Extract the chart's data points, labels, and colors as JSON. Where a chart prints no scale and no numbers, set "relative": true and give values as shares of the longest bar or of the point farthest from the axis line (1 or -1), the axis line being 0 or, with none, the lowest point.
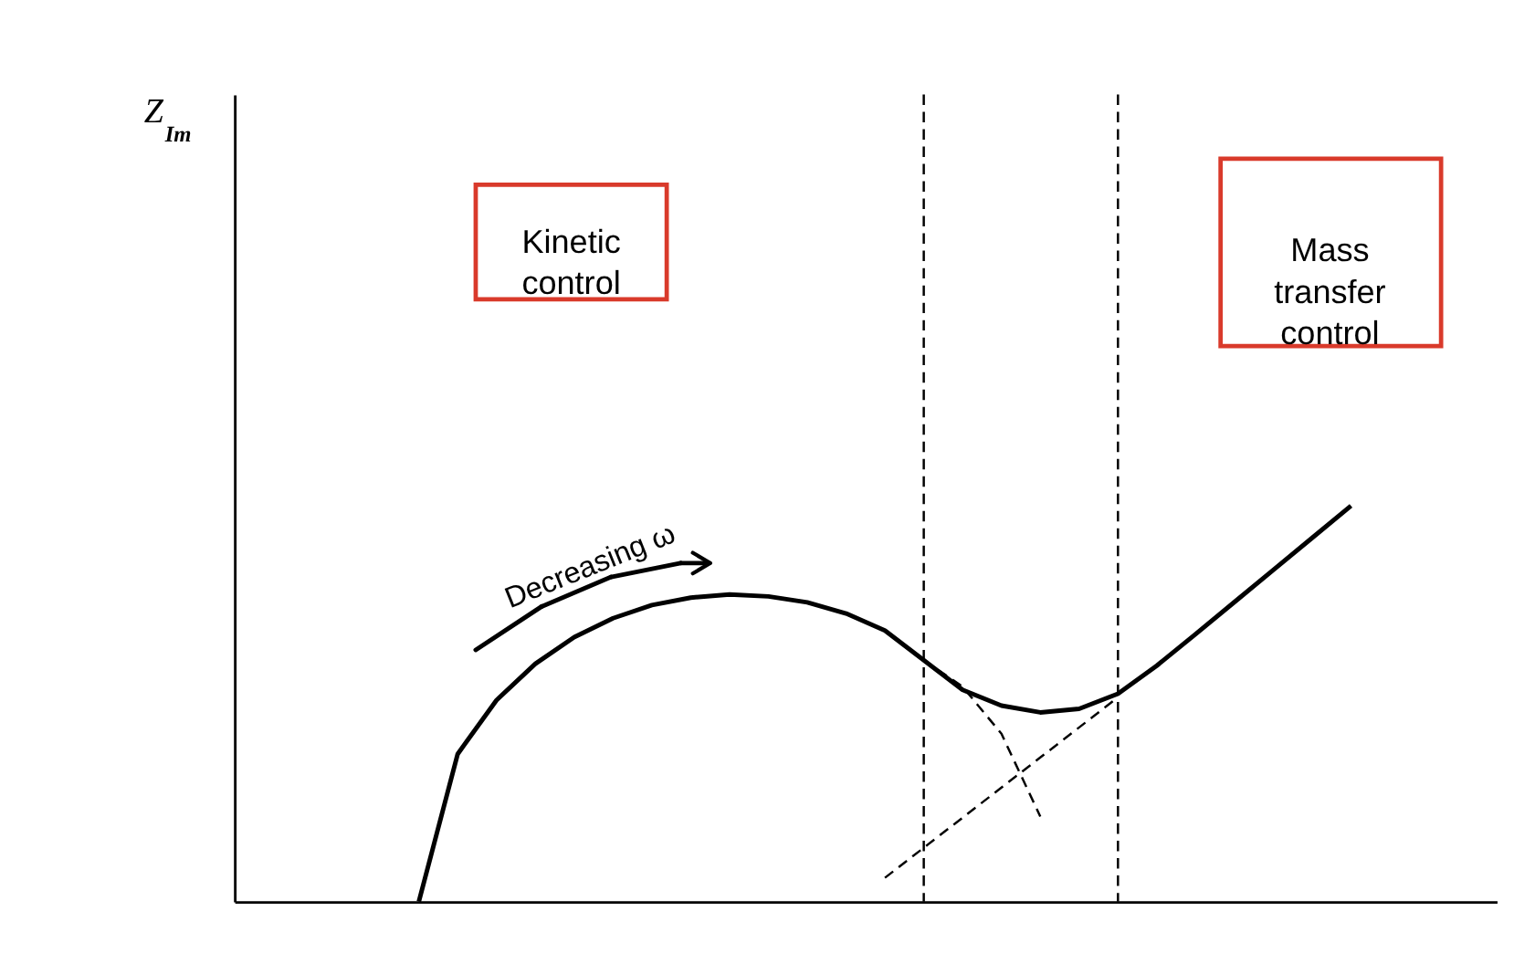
{
  "chart_data": {
    "type": "line",
    "relative": true,
    "categories": [
      null,
      null,
      null,
      null,
      null,
      null,
      null,
      null,
      null,
      null,
      null,
      null,
      null,
      null,
      null,
      null,
      null,
      null,
      null,
      null,
      null,
      null,
      null,
      null,
      null
    ],
    "annotations": [
      "Kinetic control",
      "Mass transfer control",
      "Decreasing ω",
      "Z$_{Im}$"
    ],
    "series": [
      {
        "color": "#000000",
        "line_style": "solid",
        "values": [
          0,
          0.373,
          0.509,
          0.601,
          0.668,
          0.716,
          0.749,
          0.768,
          0.776,
          0.771,
          0.756,
          0.728,
          0.685,
          0.61,
          0.535,
          0.495,
          0.478,
          0.487,
          0.525,
          0.596,
          0.676,
          0.757,
          0.838,
          0.919,
          1.0
        ]
      },
      {
        "color": "#000000",
        "line_style": "dashed",
        "values": [
          null,
          null,
          null,
          null,
          null,
          null,
          null,
          null,
          null,
          null,
          null,
          null,
          null,
          0.61,
          0.543,
          0.424,
          0.215,
          null,
          null,
          null,
          null,
          null,
          null,
          null,
          null
        ]
      },
      {
        "color": "#000000",
        "line_style": "dashed",
        "values": [
          null,
          null,
          null,
          null,
          null,
          null,
          null,
          null,
          null,
          null,
          null,
          null,
          0.06,
          0.136,
          0.212,
          0.288,
          0.364,
          0.44,
          0.516,
          null,
          null,
          null,
          null,
          null,
          null
        ]
      }
    ]
  }
}
